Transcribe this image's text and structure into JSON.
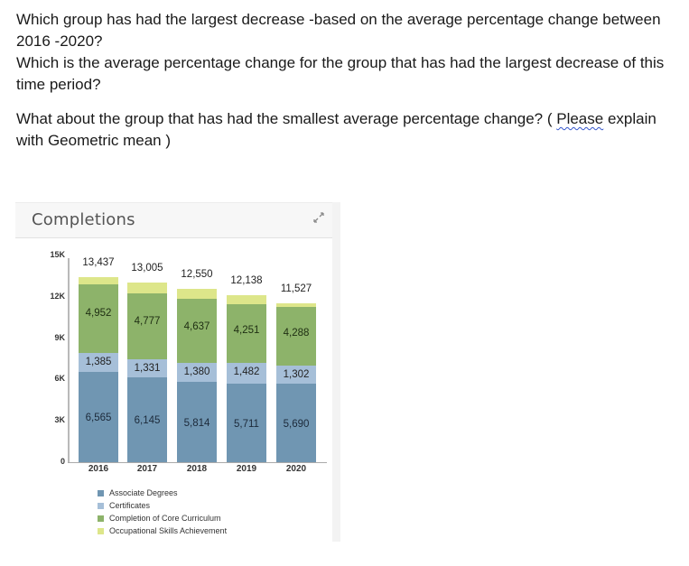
{
  "question": {
    "line1": "Which group has had the largest decrease -based on the average percentage change between 2016 -2020?",
    "line2": "Which is the average percentage change for the group that has had the largest decrease of this time period?",
    "line3_prefix": "What about the group that has had the smallest average percentage change?  ( ",
    "line3_please": "Please",
    "line3_suffix": " explain with Geometric mean )"
  },
  "card": {
    "title": "Completions",
    "expand_icon": "expand-arrows-icon"
  },
  "colors": {
    "associate": "#7096b2",
    "certificates": "#a6bfd8",
    "core": "#8db36a",
    "occupational": "#dde68a"
  },
  "chart_data": {
    "type": "bar",
    "stacked": true,
    "title": "Completions",
    "xlabel": "",
    "ylabel": "",
    "ylim": [
      0,
      15000
    ],
    "yticks": [
      "0",
      "3K",
      "6K",
      "9K",
      "12K",
      "15K"
    ],
    "categories": [
      "2016",
      "2017",
      "2018",
      "2019",
      "2020"
    ],
    "totals": [
      13437,
      13005,
      12550,
      12138,
      11527
    ],
    "total_labels": [
      "13,437",
      "13,005",
      "12,550",
      "12,138",
      "11,527"
    ],
    "series": [
      {
        "name": "Associate Degrees",
        "values": [
          6565,
          6145,
          5814,
          5711,
          5690
        ],
        "labels": [
          "6,565",
          "6,145",
          "5,814",
          "5,711",
          "5,690"
        ]
      },
      {
        "name": "Certificates",
        "values": [
          1385,
          1331,
          1380,
          1482,
          1302
        ],
        "labels": [
          "1,385",
          "1,331",
          "1,380",
          "1,482",
          "1,302"
        ]
      },
      {
        "name": "Completion of Core Curriculum",
        "values": [
          4952,
          4777,
          4637,
          4251,
          4288
        ],
        "labels": [
          "4,952",
          "4,777",
          "4,637",
          "4,251",
          "4,288"
        ]
      },
      {
        "name": "Occupational Skills Achievement",
        "values": [
          535,
          752,
          719,
          694,
          247
        ],
        "labels": [
          "",
          "",
          "",
          "",
          ""
        ]
      }
    ],
    "legend_position": "bottom-left",
    "grid": false
  }
}
